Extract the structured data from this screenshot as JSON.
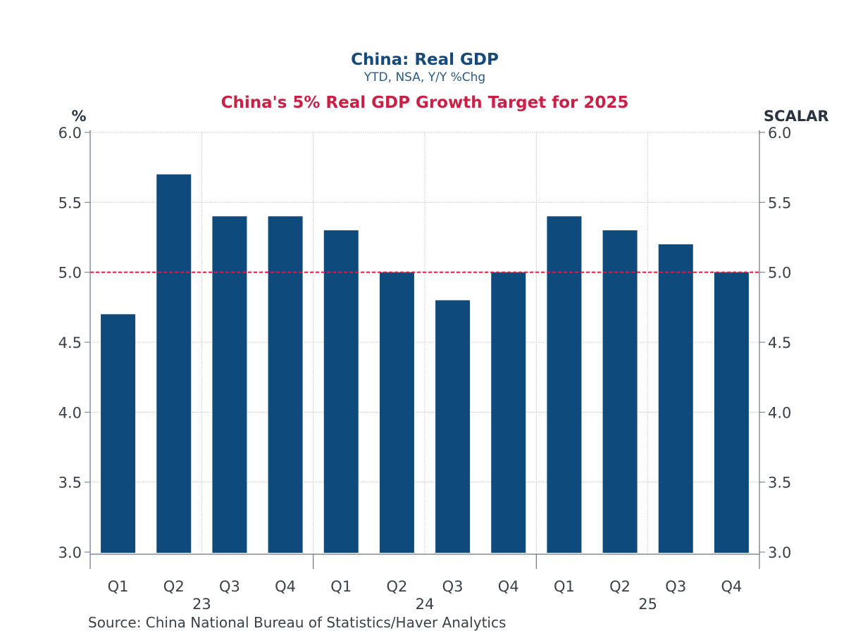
{
  "chart_data": {
    "type": "bar",
    "title": "China: Real GDP",
    "subtitle": "YTD, NSA, Y/Y %Chg",
    "headline": "China's 5% Real GDP Growth Target for 2025",
    "left_axis_label": "%",
    "right_axis_label": "SCALAR",
    "ylim": [
      3.0,
      6.0
    ],
    "yticks": [
      "6.0",
      "5.5",
      "5.0",
      "4.5",
      "4.0",
      "3.5",
      "3.0"
    ],
    "ytick_values": [
      6.0,
      5.5,
      5.0,
      4.5,
      4.0,
      3.5,
      3.0
    ],
    "grid": true,
    "categories": [
      "Q1",
      "Q2",
      "Q3",
      "Q4",
      "Q1",
      "Q2",
      "Q3",
      "Q4",
      "Q1",
      "Q2",
      "Q3",
      "Q4"
    ],
    "year_groups": [
      {
        "label": "23",
        "start": 0,
        "end": 3
      },
      {
        "label": "24",
        "start": 4,
        "end": 7
      },
      {
        "label": "25",
        "start": 8,
        "end": 11
      }
    ],
    "series": [
      {
        "name": "China: Real GDP YTD Y/Y %Chg",
        "color": "#0f4a7d",
        "values": [
          4.7,
          5.7,
          5.4,
          5.4,
          5.3,
          5.0,
          4.8,
          5.0,
          5.4,
          5.3,
          5.2,
          5.0
        ]
      }
    ],
    "reference_line": {
      "value": 5.0,
      "color": "#d81e44",
      "style": "dashed",
      "label": "5% growth target"
    },
    "source": "Source:  China National Bureau of Statistics/Haver Analytics"
  }
}
